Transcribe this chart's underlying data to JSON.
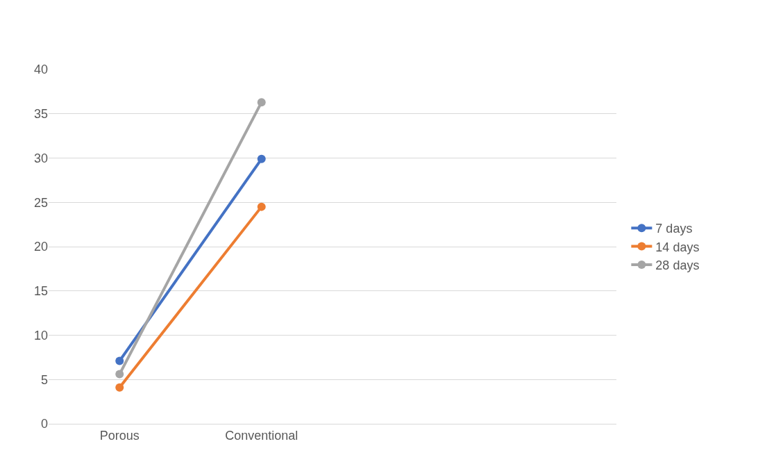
{
  "chart_data": {
    "type": "line",
    "categories": [
      "Porous",
      "Conventional",
      null,
      null
    ],
    "series": [
      {
        "name": "7 days",
        "color": "#4472c4",
        "values": [
          7.1,
          29.9,
          null,
          null
        ]
      },
      {
        "name": "14 days",
        "color": "#ed7d31",
        "values": [
          4.1,
          24.5,
          null,
          null
        ]
      },
      {
        "name": "28 days",
        "color": "#a5a5a5",
        "values": [
          5.6,
          36.3,
          null,
          null
        ]
      }
    ],
    "ylim": [
      0,
      40
    ],
    "yticks": [
      0,
      5,
      10,
      15,
      20,
      25,
      30,
      35,
      40
    ],
    "grid": "y",
    "legend": "right",
    "marker": "circle",
    "line_style": "solid"
  }
}
